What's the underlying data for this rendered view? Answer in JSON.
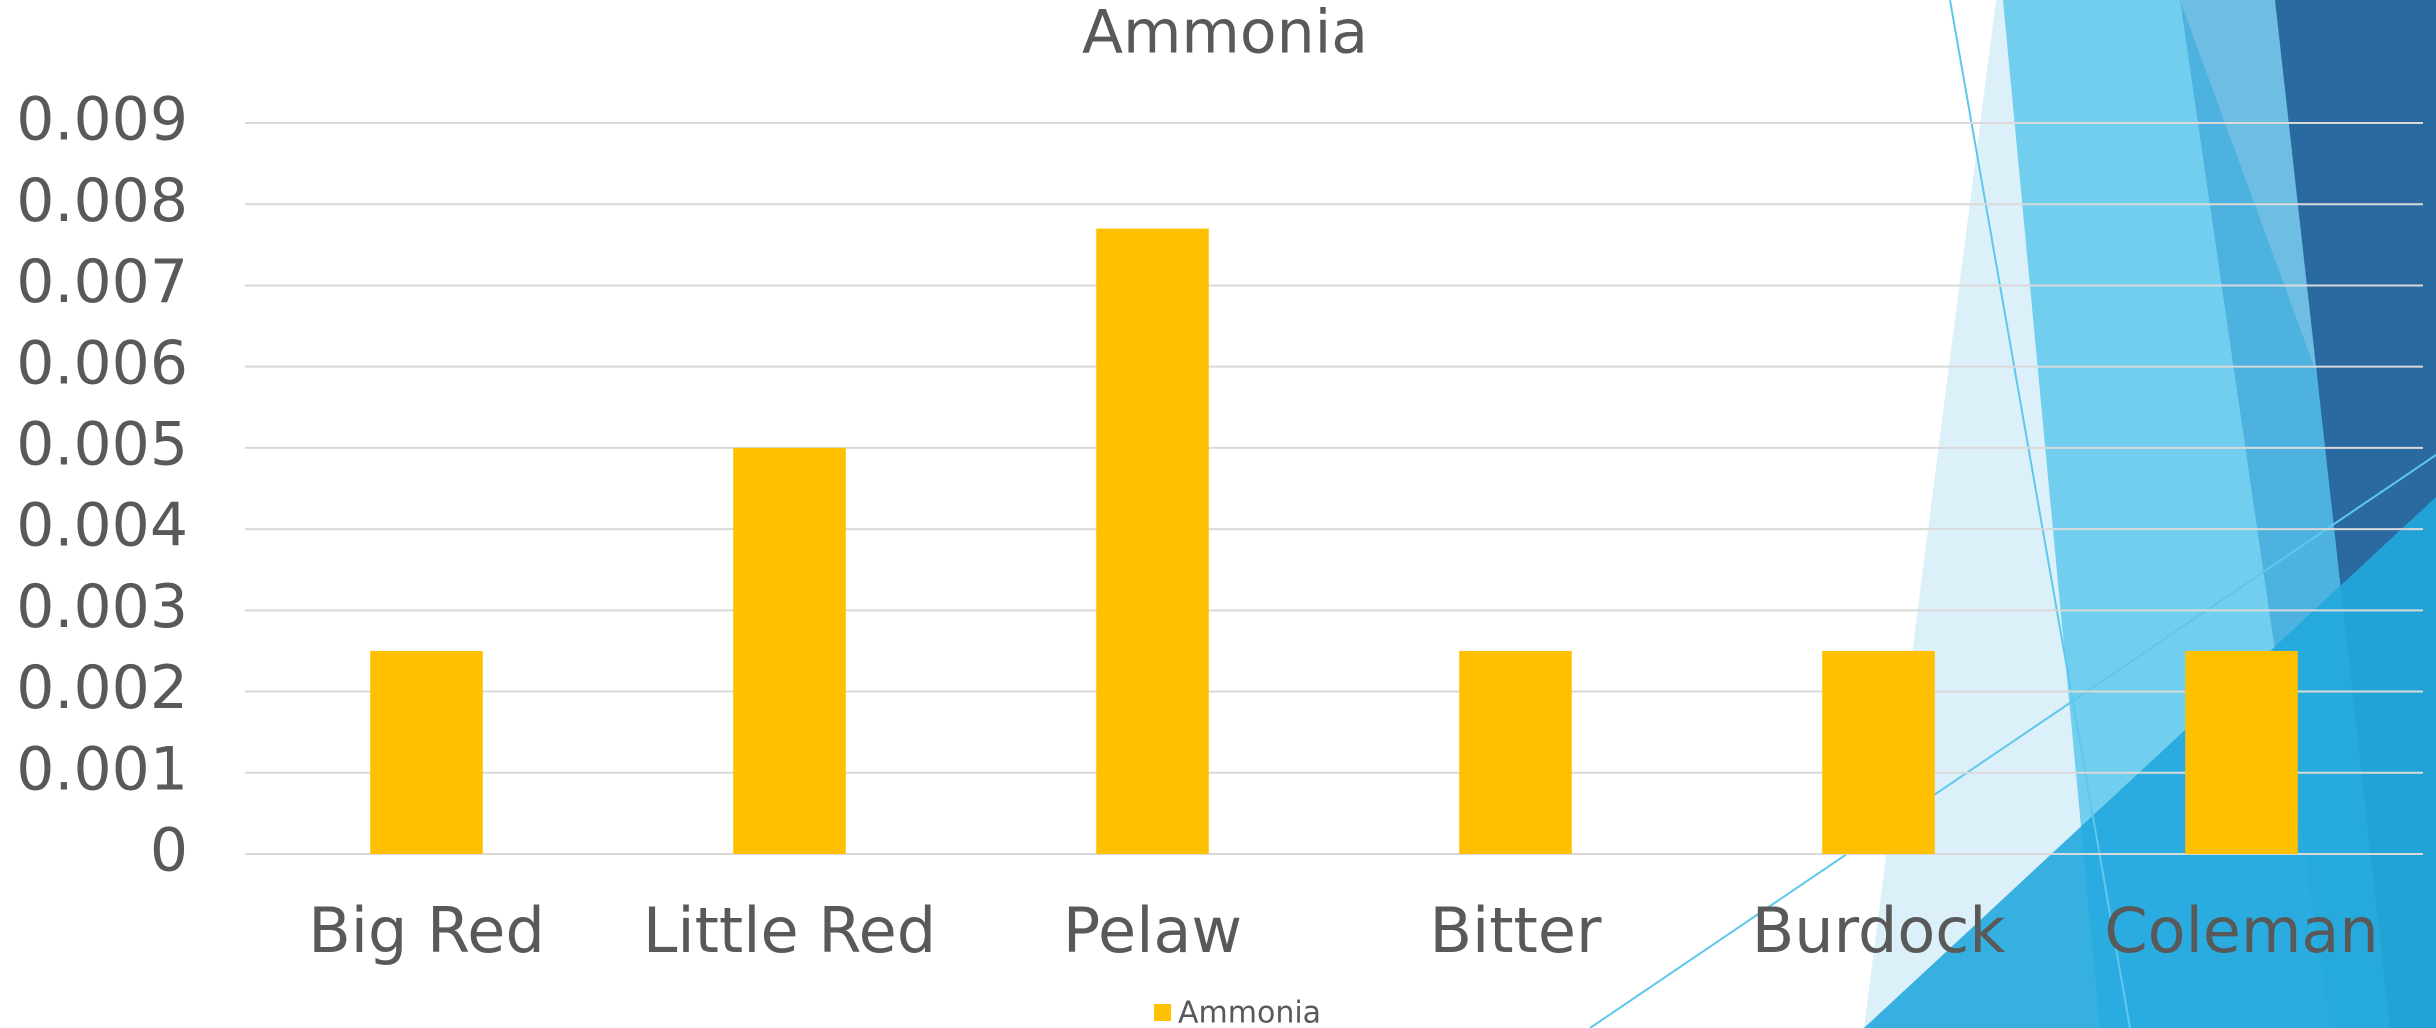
{
  "chart_data": {
    "type": "bar",
    "title": "Ammonia",
    "categories": [
      "Big Red",
      "Little Red",
      "Pelaw",
      "Bitter",
      "Burdock",
      "Coleman"
    ],
    "series": [
      {
        "name": "Ammonia",
        "color": "#ffc000",
        "values": [
          0.0025,
          0.005,
          0.0077,
          0.0025,
          0.0025,
          0.0025
        ]
      }
    ],
    "ylim": [
      0,
      0.009
    ],
    "yticks": [
      0,
      0.001,
      0.002,
      0.003,
      0.004,
      0.005,
      0.006,
      0.007,
      0.008,
      0.009
    ],
    "grid": true,
    "legend": "bottom"
  }
}
